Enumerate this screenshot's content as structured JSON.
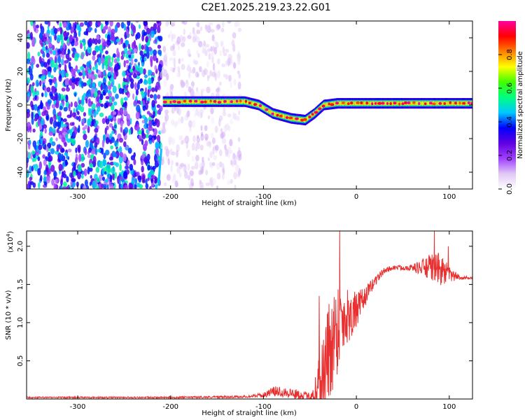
{
  "figure_title": "C2E1.2025.219.23.22.G01",
  "chart_data": [
    {
      "type": "heatmap",
      "xlabel": "Height of straight line (km)",
      "ylabel": "Frequency (Hz)",
      "xlim": [
        -355,
        125
      ],
      "ylim": [
        -50,
        50
      ],
      "x_ticks": [
        -300,
        -200,
        -100,
        0,
        100
      ],
      "y_ticks": [
        -40,
        -20,
        0,
        20,
        40
      ],
      "colorbar": {
        "label": "Normalized spectral amplitude",
        "range": [
          0,
          1
        ],
        "ticks": [
          0.0,
          0.2,
          0.4,
          0.6,
          0.8
        ],
        "tick_labels": [
          "0.0",
          "0.2",
          "0.4",
          "0.6",
          "0.8"
        ],
        "colors": [
          "#ffffff",
          "#e0c8f5",
          "#a040ff",
          "#6000e0",
          "#0000ff",
          "#00c8ff",
          "#00ff80",
          "#40ff00",
          "#ffff00",
          "#ff8000",
          "#ff0000",
          "#ff00a0"
        ]
      },
      "noise_regions": [
        {
          "x_from": -355,
          "x_to": -210,
          "density": "high",
          "intensity": 0.45
        },
        {
          "x_from": -210,
          "x_to": -125,
          "density": "low",
          "intensity": 0.1
        }
      ],
      "ridge": {
        "x": [
          -208,
          -150,
          -120,
          -105,
          -90,
          -70,
          -55,
          -45,
          -35,
          -20,
          0,
          40,
          80,
          125
        ],
        "freq": [
          2,
          2,
          2,
          0,
          -5,
          -8,
          -9,
          -5,
          0,
          1,
          1,
          1,
          1,
          1
        ],
        "peak_amplitude": 1.0
      },
      "streak": {
        "x": [
          -213,
          -210
        ],
        "freq": [
          -48,
          -26
        ]
      }
    },
    {
      "type": "line",
      "xlabel": "Height of straight line (km)",
      "ylabel": "SNR (10 * v/v)",
      "y_multiplier_label": "(x10",
      "y_multiplier_exp": "4",
      "y_multiplier_close": ")",
      "xlim": [
        -355,
        125
      ],
      "ylim": [
        0,
        2.2
      ],
      "x_ticks": [
        -300,
        -200,
        -100,
        0,
        100
      ],
      "y_ticks": [
        0.5,
        1.0,
        1.5,
        2.0
      ],
      "y_tick_labels": [
        "0.5",
        "1.0",
        "1.5",
        "2.0"
      ],
      "color": "#e83030",
      "envelope": {
        "x": [
          -355,
          -200,
          -120,
          -100,
          -90,
          -80,
          -60,
          -50,
          -45,
          -35,
          -30,
          -25,
          -20,
          -10,
          0,
          10,
          20,
          30,
          40,
          60,
          80,
          90,
          100,
          110,
          125
        ],
        "mean": [
          0.02,
          0.02,
          0.03,
          0.05,
          0.1,
          0.1,
          0.05,
          0.03,
          0.1,
          0.35,
          0.6,
          0.8,
          0.95,
          1.1,
          1.15,
          1.35,
          1.55,
          1.68,
          1.72,
          1.72,
          1.72,
          1.7,
          1.62,
          1.6,
          1.57
        ],
        "noise": [
          0.01,
          0.01,
          0.015,
          0.03,
          0.06,
          0.08,
          0.06,
          0.05,
          0.2,
          0.6,
          0.7,
          0.7,
          0.6,
          0.4,
          0.25,
          0.12,
          0.07,
          0.04,
          0.03,
          0.04,
          0.18,
          0.22,
          0.12,
          0.03,
          0.02
        ]
      },
      "spikes": [
        {
          "x": -18,
          "y": 2.2
        },
        {
          "x": -40,
          "y": 1.35
        },
        {
          "x": 84,
          "y": 2.2
        },
        {
          "x": 99,
          "y": 2.0
        },
        {
          "x": -28,
          "y": 0.05
        }
      ]
    }
  ]
}
